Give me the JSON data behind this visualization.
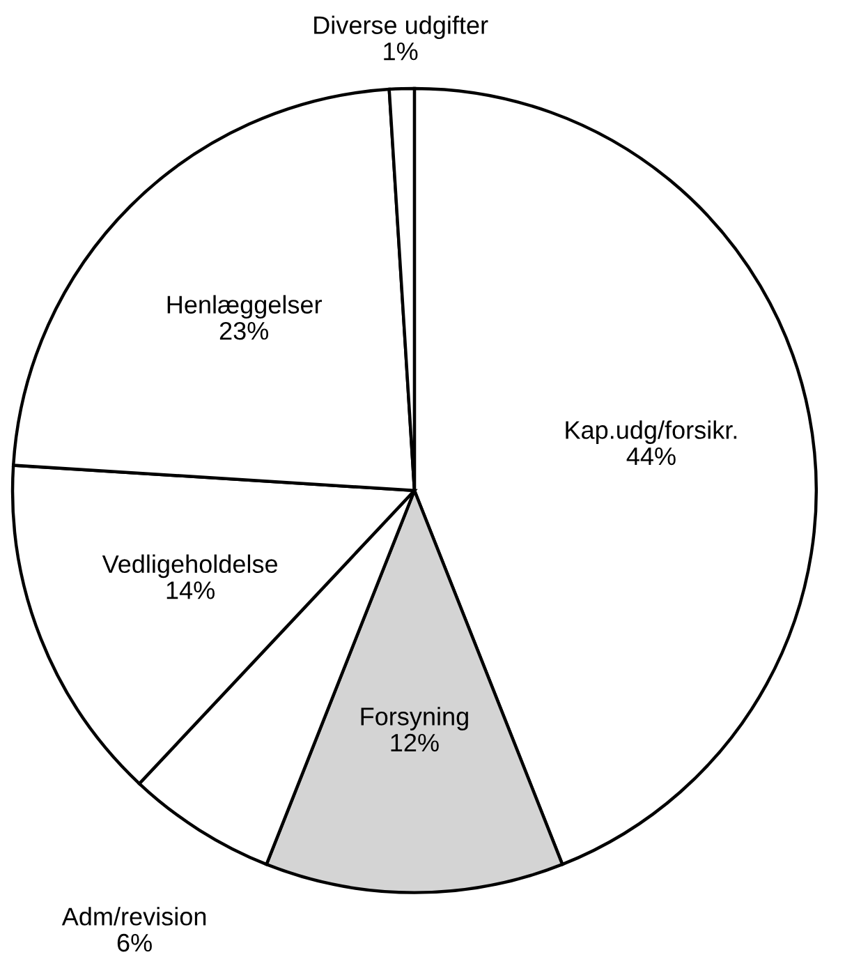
{
  "chart_data": {
    "type": "pie",
    "categories": [
      "Kap.udg/forsikr.",
      "Forsyning",
      "Adm/revision",
      "Vedligeholdelse",
      "Henlæggelser",
      "Diverse udgifter"
    ],
    "values": [
      44,
      12,
      6,
      14,
      23,
      1
    ],
    "value_labels": [
      "44%",
      "12%",
      "6%",
      "14%",
      "23%",
      "1%"
    ],
    "colors": [
      "#ffffff",
      "#d4d4d4",
      "#ffffff",
      "#ffffff",
      "#ffffff",
      "#ffffff"
    ]
  }
}
